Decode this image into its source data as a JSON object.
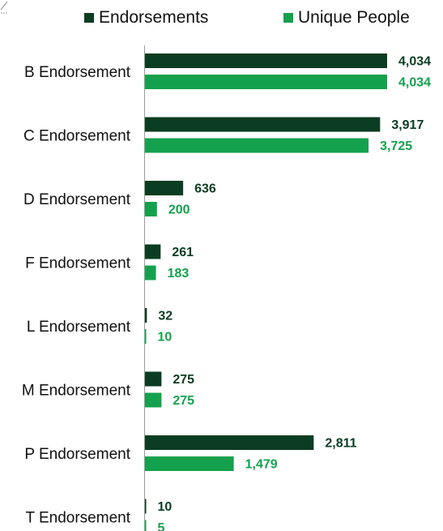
{
  "colors": {
    "endorsements": "#0b3d22",
    "unique_people": "#14a14d",
    "text": "#111111",
    "divider": "#9a9a9a"
  },
  "chart_data": {
    "type": "bar",
    "orientation": "horizontal",
    "categories": [
      "B Endorsement",
      "C Endorsement",
      "D Endorsement",
      "F Endorsement",
      "L Endorsement",
      "M Endorsement",
      "P Endorsement",
      "T Endorsement"
    ],
    "series": [
      {
        "name": "Endorsements",
        "values": [
          4034,
          3917,
          636,
          261,
          32,
          275,
          2811,
          10
        ],
        "labels": [
          "4,034",
          "3,917",
          "636",
          "261",
          "32",
          "275",
          "2,811",
          "10"
        ]
      },
      {
        "name": "Unique People",
        "values": [
          4034,
          3725,
          200,
          183,
          10,
          275,
          1479,
          5
        ],
        "labels": [
          "4,034",
          "3,725",
          "200",
          "183",
          "10",
          "275",
          "1,479",
          "5"
        ]
      }
    ],
    "xlim": [
      0,
      4034
    ],
    "legend_position": "top",
    "grid": false
  }
}
